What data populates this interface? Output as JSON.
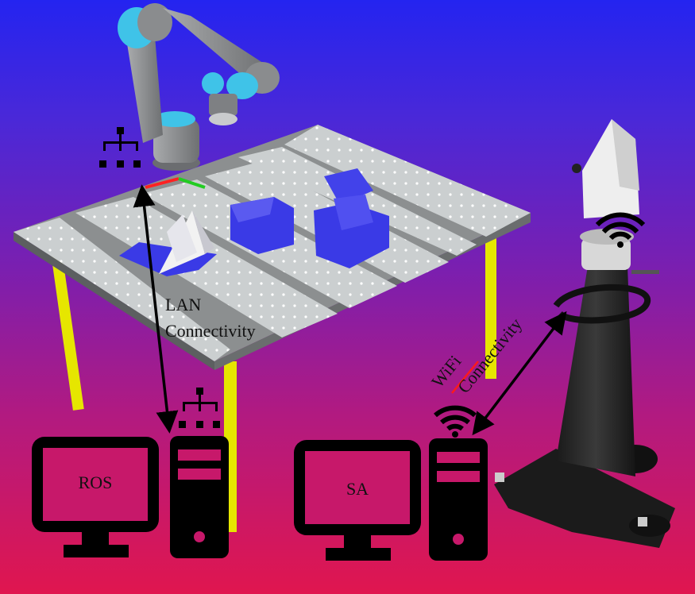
{
  "labels": {
    "lan_line1": "LAN",
    "lan_line2": "Connectivity",
    "wifi_word": "WiFi",
    "wifi_connectivity": "Connectivity",
    "ros": "ROS",
    "sa": "SA"
  },
  "colors": {
    "table_top": "#c9cccc",
    "table_leg": "#e6e600",
    "robot_gray": "#8a8c8e",
    "robot_cyan": "#3fc3e8",
    "workpiece_blue": "#3a3ae6",
    "computer": "#000000",
    "screen_fill": "#c7186a",
    "tracker_body": "#2a2a2a",
    "strike_red": "#ff1a1a"
  },
  "icons": [
    "network-icon",
    "wifi-icon",
    "desktop-computer-icon",
    "robot-arm-icon",
    "laser-tracker-icon"
  ]
}
